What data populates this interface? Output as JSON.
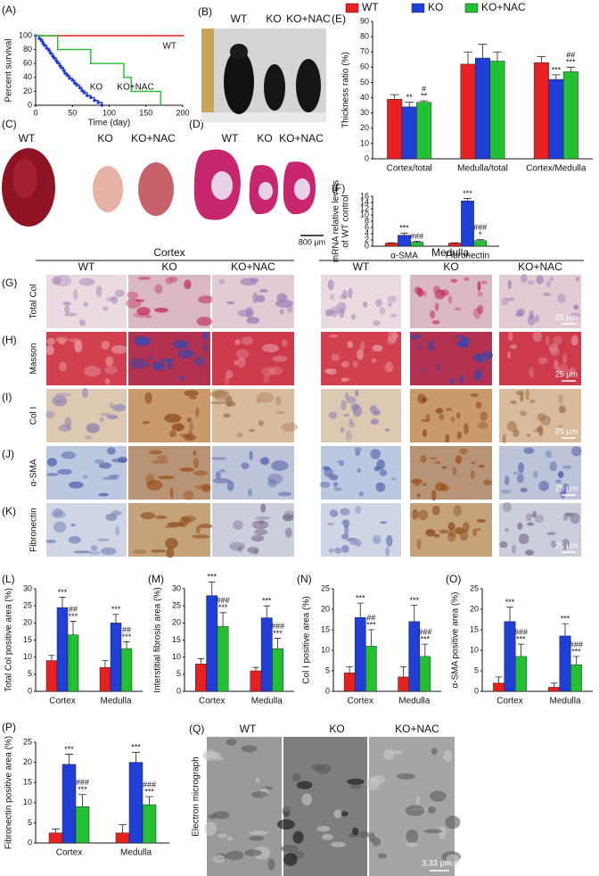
{
  "chart_data": [
    {
      "type": "line",
      "panel": "(A)",
      "ylabel": "Percent survival",
      "xlabel": "Time (day)",
      "xlim": [
        0,
        200
      ],
      "xticks": [
        0,
        50,
        100,
        150,
        200
      ],
      "ylim": [
        0,
        100
      ],
      "yticks": [
        0,
        20,
        40,
        60,
        80,
        100
      ],
      "step": true,
      "series": [
        {
          "name": "WT",
          "color": "#e8201f",
          "x": [
            0,
            200
          ],
          "values": [
            100,
            100
          ]
        },
        {
          "name": "KO",
          "color": "#1f3fd8",
          "markers": true,
          "x": [
            0,
            5,
            8,
            10,
            12,
            15,
            18,
            20,
            23,
            25,
            28,
            30,
            33,
            35,
            38,
            40,
            43,
            46,
            50,
            53,
            56,
            60,
            63,
            66,
            70,
            75,
            80,
            85,
            90
          ],
          "values": [
            100,
            96,
            93,
            89,
            86,
            82,
            79,
            75,
            71,
            68,
            64,
            61,
            57,
            54,
            50,
            46,
            43,
            39,
            36,
            32,
            29,
            25,
            21,
            18,
            14,
            11,
            7,
            4,
            0
          ]
        },
        {
          "name": "KO+NAC",
          "color": "#22c032",
          "x": [
            0,
            30,
            75,
            120,
            130,
            170
          ],
          "values": [
            100,
            80,
            60,
            40,
            20,
            0
          ]
        }
      ]
    },
    {
      "type": "bar",
      "panel": "(E)",
      "ylabel": [
        "Thickness ratio (%)"
      ],
      "legend": true,
      "categories": [
        "Cortex/total",
        "Medulla/total",
        "Cortex/Medulla"
      ],
      "ylim": [
        0,
        90
      ],
      "yticks": [
        0,
        10,
        20,
        30,
        40,
        50,
        60,
        70,
        80,
        90
      ],
      "series": [
        {
          "name": "WT",
          "color": "#e8201f",
          "values": [
            39,
            62,
            63
          ],
          "errors": [
            3,
            8,
            4
          ],
          "signif": [
            null,
            null,
            null
          ]
        },
        {
          "name": "KO",
          "color": "#1f3fd8",
          "values": [
            34,
            66,
            52
          ],
          "errors": [
            3,
            9,
            3
          ],
          "signif": [
            [
              "**"
            ],
            null,
            [
              "***"
            ]
          ]
        },
        {
          "name": "KO+NAC",
          "color": "#22c032",
          "values": [
            37,
            64,
            57
          ],
          "errors": [
            1,
            6,
            3
          ],
          "signif": [
            [
              "#",
              "**"
            ],
            null,
            [
              "##",
              "***"
            ]
          ]
        }
      ]
    },
    {
      "type": "bar",
      "panel": "(F)",
      "ylabel": [
        "mRNA  relative levels",
        "of WT control"
      ],
      "categories": [
        "α-SMA",
        "Fibronectin"
      ],
      "ylim": [
        0,
        16
      ],
      "yticks": [
        0,
        2,
        4,
        6,
        8,
        10,
        12,
        14,
        16
      ],
      "series": [
        {
          "color": "#e8201f",
          "values": [
            1,
            1
          ],
          "errors": [
            0.1,
            0.1
          ],
          "signif": [
            null,
            null
          ]
        },
        {
          "color": "#1f3fd8",
          "values": [
            3.5,
            14.5
          ],
          "errors": [
            0.7,
            0.8
          ],
          "signif": [
            [
              "***"
            ],
            [
              "***"
            ]
          ]
        },
        {
          "color": "#22c032",
          "values": [
            1.3,
            1.8
          ],
          "errors": [
            0.3,
            0.3
          ],
          "signif": [
            [
              "###"
            ],
            [
              "###",
              "*"
            ]
          ]
        }
      ]
    },
    {
      "type": "bar",
      "panel": "(L)",
      "ylabel": [
        "Total Col positive area (%)"
      ],
      "categories": [
        "Cortex",
        "Medulla"
      ],
      "ylim": [
        0,
        30
      ],
      "yticks": [
        0,
        5,
        10,
        15,
        20,
        25,
        30
      ],
      "series": [
        {
          "color": "#e8201f",
          "values": [
            9,
            7
          ],
          "errors": [
            1.5,
            2
          ],
          "signif": [
            null,
            null
          ]
        },
        {
          "color": "#1f3fd8",
          "values": [
            24.5,
            20
          ],
          "errors": [
            3,
            2.5
          ],
          "signif": [
            [
              "***"
            ],
            [
              "***"
            ]
          ]
        },
        {
          "color": "#22c032",
          "values": [
            16.5,
            12.5
          ],
          "errors": [
            4,
            2
          ],
          "signif": [
            [
              "##",
              "***"
            ],
            [
              "##",
              "***"
            ]
          ]
        }
      ]
    },
    {
      "type": "bar",
      "panel": "(M)",
      "ylabel": [
        "Interstitial fibrosis area (%)"
      ],
      "categories": [
        "Cortex",
        "Medulla"
      ],
      "ylim": [
        0,
        30
      ],
      "yticks": [
        0,
        5,
        10,
        15,
        20,
        25,
        30
      ],
      "series": [
        {
          "color": "#e8201f",
          "values": [
            8,
            6
          ],
          "errors": [
            1.5,
            1
          ],
          "signif": [
            null,
            null
          ]
        },
        {
          "color": "#1f3fd8",
          "values": [
            28,
            21.5
          ],
          "errors": [
            4,
            3.5
          ],
          "signif": [
            [
              "***"
            ],
            [
              "***"
            ]
          ]
        },
        {
          "color": "#22c032",
          "values": [
            19,
            12.5
          ],
          "errors": [
            4,
            3
          ],
          "signif": [
            [
              "###",
              "***"
            ],
            [
              "###",
              "***"
            ]
          ]
        }
      ]
    },
    {
      "type": "bar",
      "panel": "(N)",
      "ylabel": [
        "Col I positive area (%)"
      ],
      "categories": [
        "Cortex",
        "Medulla"
      ],
      "ylim": [
        0,
        25
      ],
      "yticks": [
        0,
        5,
        10,
        15,
        20,
        25
      ],
      "series": [
        {
          "color": "#e8201f",
          "values": [
            4.5,
            3.5
          ],
          "errors": [
            1.5,
            2.5
          ],
          "signif": [
            null,
            null
          ]
        },
        {
          "color": "#1f3fd8",
          "values": [
            18,
            17
          ],
          "errors": [
            3.5,
            4
          ],
          "signif": [
            [
              "***"
            ],
            [
              "***"
            ]
          ]
        },
        {
          "color": "#22c032",
          "values": [
            11,
            8.5
          ],
          "errors": [
            4,
            3
          ],
          "signif": [
            [
              "##",
              "***"
            ],
            [
              "###",
              "***"
            ]
          ]
        }
      ]
    },
    {
      "type": "bar",
      "panel": "(O)",
      "ylabel": [
        "α-SMA positive area (%)"
      ],
      "categories": [
        "Cortex",
        "Medulla"
      ],
      "ylim": [
        0,
        25
      ],
      "yticks": [
        0,
        5,
        10,
        15,
        20,
        25
      ],
      "series": [
        {
          "color": "#e8201f",
          "values": [
            2,
            1
          ],
          "errors": [
            1.5,
            1
          ],
          "signif": [
            null,
            null
          ]
        },
        {
          "color": "#1f3fd8",
          "values": [
            17,
            13.5
          ],
          "errors": [
            3.5,
            3
          ],
          "signif": [
            [
              "***"
            ],
            [
              "***"
            ]
          ]
        },
        {
          "color": "#22c032",
          "values": [
            8.5,
            6.5
          ],
          "errors": [
            3,
            2
          ],
          "signif": [
            [
              "###",
              "***"
            ],
            [
              "###",
              "***"
            ]
          ]
        }
      ]
    },
    {
      "type": "bar",
      "panel": "(P)",
      "ylabel": [
        "Fibronectin positive area (%)"
      ],
      "categories": [
        "Cortex",
        "Medulla"
      ],
      "ylim": [
        0,
        25
      ],
      "yticks": [
        0,
        5,
        10,
        15,
        20,
        25
      ],
      "series": [
        {
          "color": "#e8201f",
          "values": [
            2.5,
            2.5
          ],
          "errors": [
            1,
            2
          ],
          "signif": [
            null,
            null
          ]
        },
        {
          "color": "#1f3fd8",
          "values": [
            19.5,
            20
          ],
          "errors": [
            2.5,
            2.5
          ],
          "signif": [
            [
              "***"
            ],
            [
              "***"
            ]
          ]
        },
        {
          "color": "#22c032",
          "values": [
            9,
            9.5
          ],
          "errors": [
            3,
            2
          ],
          "signif": [
            [
              "###",
              "***"
            ],
            [
              "###",
              "***"
            ]
          ]
        }
      ]
    }
  ],
  "photos": [
    {
      "panel": "(B)",
      "labels": [
        "WT",
        "KO",
        "KO+NAC"
      ]
    },
    {
      "panel": "(C)",
      "labels": [
        "WT",
        "KO",
        "KO+NAC"
      ]
    },
    {
      "panel": "(D)",
      "labels": [
        "WT",
        "KO",
        "KO+NAC"
      ],
      "scale": "800 μm"
    }
  ],
  "histology": {
    "groups": [
      "Cortex",
      "Medulla"
    ],
    "columns": [
      "WT",
      "KO",
      "KO+NAC"
    ],
    "scale": "25 μm",
    "rows": [
      {
        "panel": "(G)",
        "label": "Total Col"
      },
      {
        "panel": "(H)",
        "label": "Masson"
      },
      {
        "panel": "(I)",
        "label": "Col I"
      },
      {
        "panel": "(J)",
        "label": "α-SMA"
      },
      {
        "panel": "(K)",
        "label": "Fibronectin"
      }
    ]
  },
  "em": {
    "panel": "(Q)",
    "label": "Electron micrograph",
    "columns": [
      "WT",
      "KO",
      "KO+NAC"
    ],
    "scale": "3.33 μm"
  }
}
